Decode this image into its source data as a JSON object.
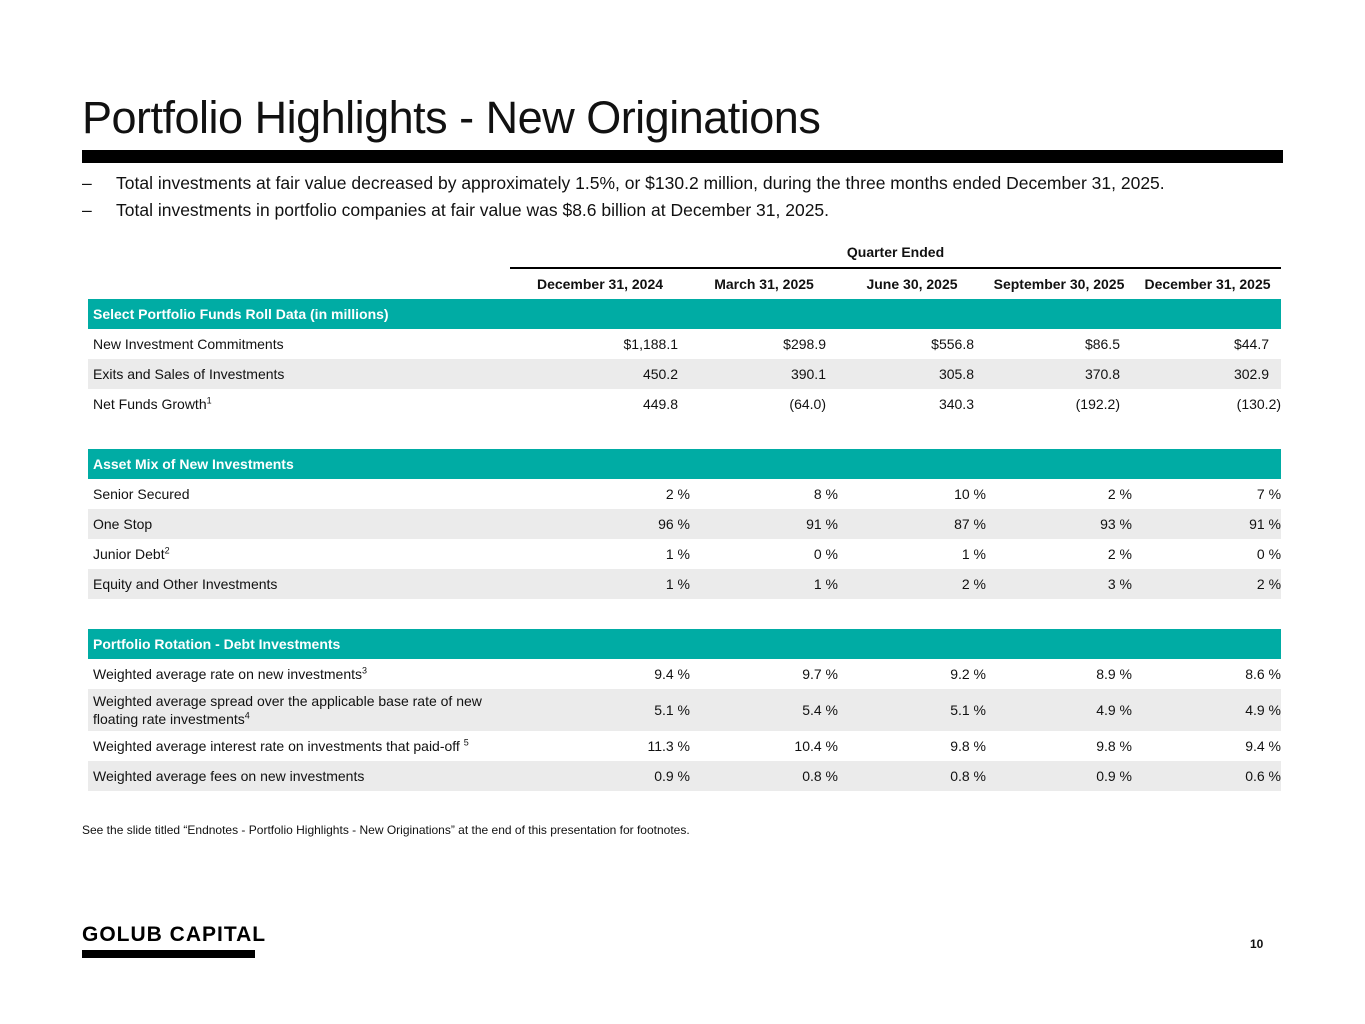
{
  "title": "Portfolio Highlights - New Originations",
  "bullets": [
    {
      "dash": "–",
      "text": "Total investments at fair value decreased by approximately 1.5%, or $130.2 million, during the three months ended December 31, 2025."
    },
    {
      "dash": "–",
      "text": "Total investments in portfolio companies at fair value was $8.6 billion at December 31, 2025."
    }
  ],
  "table": {
    "group_header": "Quarter Ended",
    "columns": [
      "December 31, 2024",
      "March 31, 2025",
      "June 30, 2025",
      "September 30, 2025",
      "December 31, 2025"
    ],
    "sections": [
      {
        "title": "Select Portfolio Funds Roll Data (in millions)",
        "rows": [
          {
            "label": "New Investment Commitments",
            "sup": "",
            "values": [
              "$1,188.1",
              "$298.9",
              "$556.8",
              "$86.5",
              "$44.7"
            ]
          },
          {
            "label": "Exits and Sales of Investments",
            "sup": "",
            "values": [
              "450.2",
              "390.1",
              "305.8",
              "370.8",
              "302.9"
            ]
          },
          {
            "label": "Net Funds Growth",
            "sup": "1",
            "values": [
              "449.8",
              "(64.0)",
              "340.3",
              "(192.2)",
              "(130.2)"
            ]
          }
        ]
      },
      {
        "title": "Asset Mix of New Investments",
        "rows": [
          {
            "label": "Senior Secured",
            "sup": "",
            "values": [
              "2 %",
              "8 %",
              "10 %",
              "2 %",
              "7 %"
            ]
          },
          {
            "label": "One Stop",
            "sup": "",
            "values": [
              "96 %",
              "91 %",
              "87 %",
              "93 %",
              "91 %"
            ]
          },
          {
            "label": "Junior Debt",
            "sup": "2",
            "values": [
              "1 %",
              "0 %",
              "1 %",
              "2 %",
              "0 %"
            ]
          },
          {
            "label": "Equity and Other Investments",
            "sup": "",
            "values": [
              "1 %",
              "1 %",
              "2 %",
              "3 %",
              "2 %"
            ]
          }
        ]
      },
      {
        "title": "Portfolio Rotation - Debt Investments",
        "rows": [
          {
            "label": "Weighted average rate on new investments",
            "sup": "3",
            "values": [
              "9.4 %",
              "9.7 %",
              "9.2 %",
              "8.9 %",
              "8.6 %"
            ]
          },
          {
            "label": "Weighted average spread over the applicable base rate of new floating rate investments",
            "sup": "4",
            "values": [
              "5.1 %",
              "5.4 %",
              "5.1 %",
              "4.9 %",
              "4.9 %"
            ]
          },
          {
            "label": "Weighted average interest rate on investments that paid-off ",
            "sup": "5",
            "values": [
              "11.3 %",
              "10.4 %",
              "9.8 %",
              "9.8 %",
              "9.4 %"
            ]
          },
          {
            "label": "Weighted average fees on new investments",
            "sup": "",
            "values": [
              "0.9 %",
              "0.8 %",
              "0.8 %",
              "0.9 %",
              "0.6 %"
            ]
          }
        ]
      }
    ]
  },
  "footnote": "See the slide titled “Endnotes - Portfolio Highlights - New Originations” at the end of this presentation for footnotes.",
  "logo": "GOLUB CAPITAL",
  "page_number": "10",
  "colors": {
    "section_header": "#00aca4",
    "row_shade": "#ebebeb",
    "rule": "#000000"
  }
}
